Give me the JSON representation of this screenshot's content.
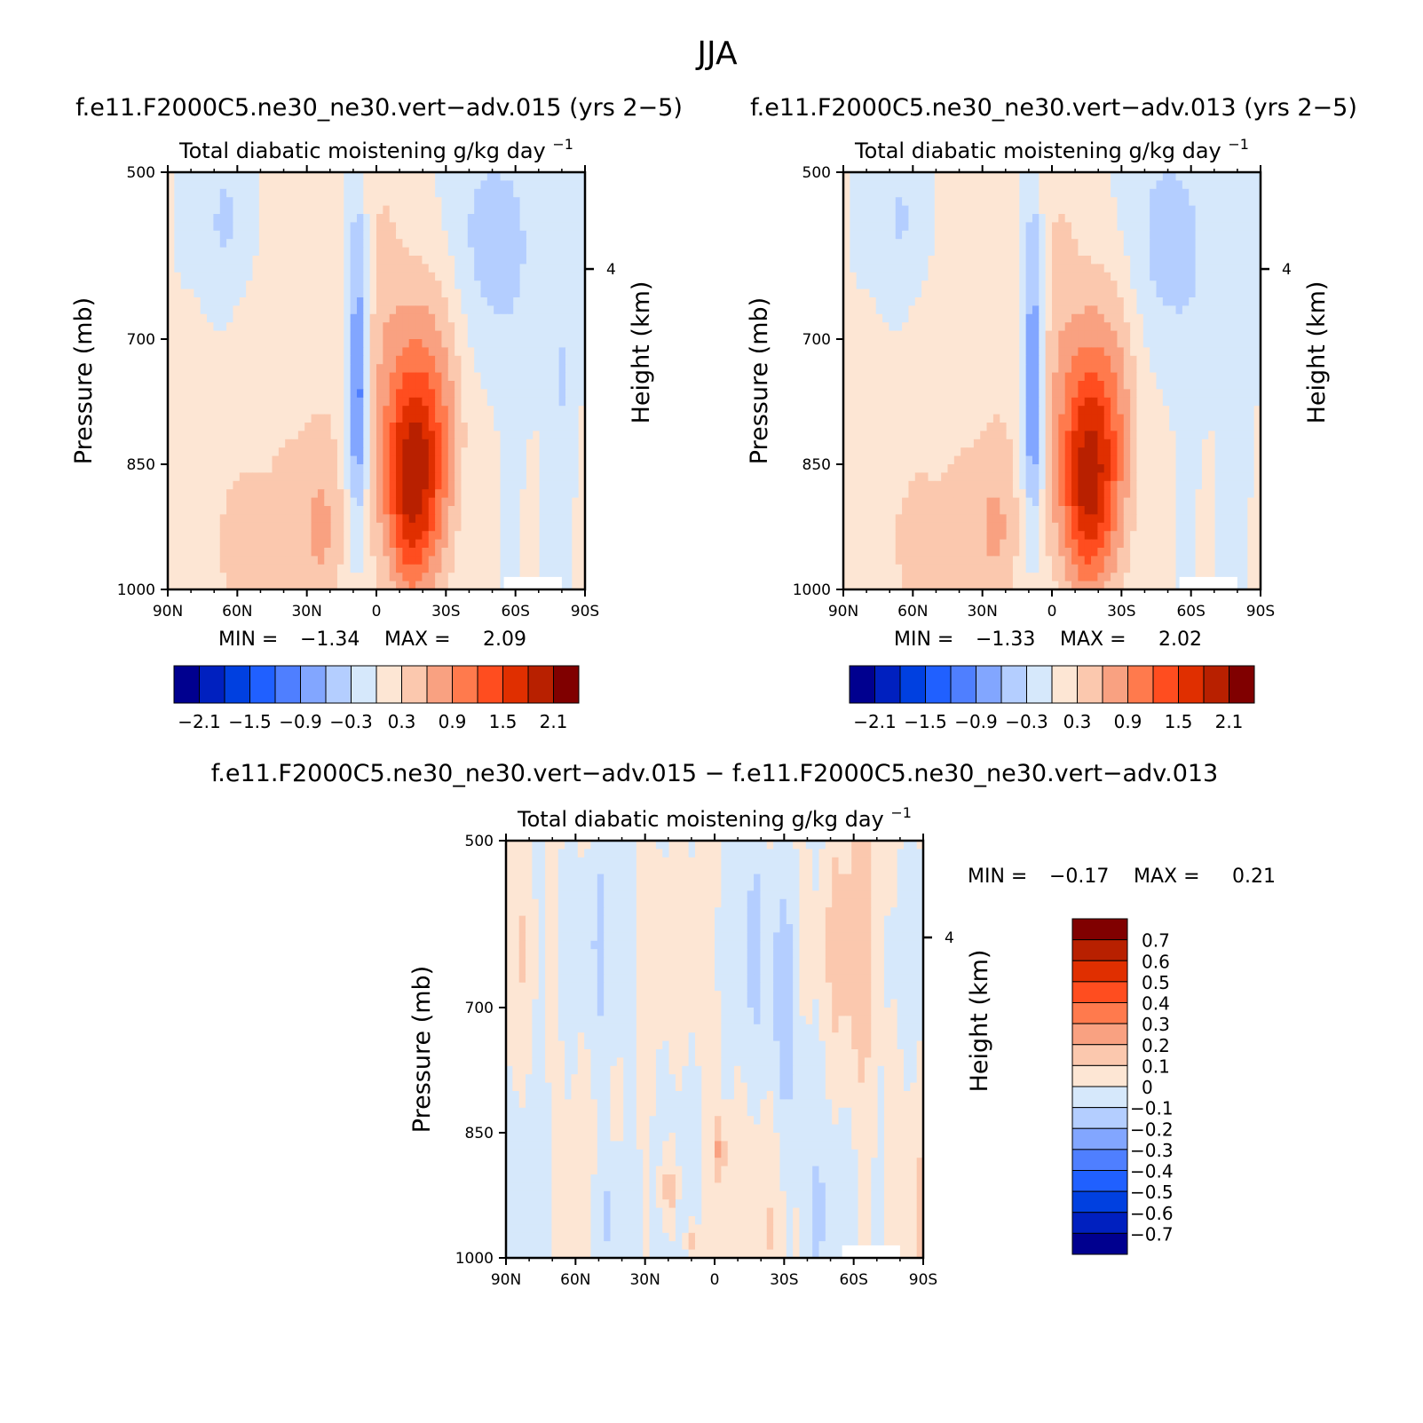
{
  "page": {
    "title": "JJA"
  },
  "colors": {
    "label_bg": "#ffffff",
    "axis": "#000000",
    "palette": [
      "#00008f",
      "#0020bf",
      "#0040e0",
      "#2060ff",
      "#4f7fff",
      "#82a6ff",
      "#b4ceff",
      "#d6e8fb",
      "#fde6d4",
      "#fbc8ae",
      "#f9a181",
      "#ff7a4d",
      "#ff4d1f",
      "#e02f00",
      "#b82000",
      "#800000"
    ]
  },
  "chart_data": [
    {
      "type": "heatmap",
      "id": "p1",
      "run_title": "f.e11.F2000C5.ne30_ne30.vert−adv.015 (yrs 2−5)",
      "title": "Total diabatic moistening",
      "units": "g/kg day",
      "units_exp": "−1",
      "ylabel": "Pressure (mb)",
      "ylabel_right": "Height (km)",
      "xlabel": "",
      "x_ticks": [
        "90N",
        "60N",
        "30N",
        "0",
        "30S",
        "60S",
        "90S"
      ],
      "y_ticks": [
        "500",
        "700",
        "850",
        "1000"
      ],
      "y_ticks_right": [
        "4"
      ],
      "xlim": [
        90,
        -90
      ],
      "ylim": [
        1000,
        500
      ],
      "stats": {
        "min_label": "MIN =",
        "min": "−1.34",
        "max_label": "MAX =",
        "max": "2.09"
      },
      "colorbar": {
        "orientation": "horizontal",
        "labels": [
          "−2.1",
          "−1.5",
          "−0.9",
          "−0.3",
          "0.3",
          "0.9",
          "1.5",
          "2.1"
        ]
      },
      "peaks": {
        "neg": -1.34,
        "pos": 2.09
      }
    },
    {
      "type": "heatmap",
      "id": "p2",
      "run_title": "f.e11.F2000C5.ne30_ne30.vert−adv.013 (yrs 2−5)",
      "title": "Total diabatic moistening",
      "units": "g/kg day",
      "units_exp": "−1",
      "ylabel": "Pressure (mb)",
      "ylabel_right": "Height (km)",
      "xlabel": "",
      "x_ticks": [
        "90N",
        "60N",
        "30N",
        "0",
        "30S",
        "60S",
        "90S"
      ],
      "y_ticks": [
        "500",
        "700",
        "850",
        "1000"
      ],
      "y_ticks_right": [
        "4"
      ],
      "xlim": [
        90,
        -90
      ],
      "ylim": [
        1000,
        500
      ],
      "stats": {
        "min_label": "MIN =",
        "min": "−1.33",
        "max_label": "MAX =",
        "max": "2.02"
      },
      "colorbar": {
        "orientation": "horizontal",
        "labels": [
          "−2.1",
          "−1.5",
          "−0.9",
          "−0.3",
          "0.3",
          "0.9",
          "1.5",
          "2.1"
        ]
      },
      "peaks": {
        "neg": -1.33,
        "pos": 2.02
      }
    },
    {
      "type": "heatmap",
      "id": "p3",
      "run_title": "f.e11.F2000C5.ne30_ne30.vert−adv.015 − f.e11.F2000C5.ne30_ne30.vert−adv.013",
      "title": "Total diabatic moistening",
      "units": "g/kg day",
      "units_exp": "−1",
      "ylabel": "Pressure (mb)",
      "ylabel_right": "Height (km)",
      "xlabel": "",
      "x_ticks": [
        "90N",
        "60N",
        "30N",
        "0",
        "30S",
        "60S",
        "90S"
      ],
      "y_ticks": [
        "500",
        "700",
        "850",
        "1000"
      ],
      "y_ticks_right": [
        "4"
      ],
      "xlim": [
        90,
        -90
      ],
      "ylim": [
        1000,
        500
      ],
      "stats": {
        "min_label": "MIN =",
        "min": "−0.17",
        "max_label": "MAX =",
        "max": "0.21"
      },
      "colorbar": {
        "orientation": "vertical",
        "labels": [
          "0.7",
          "0.6",
          "0.5",
          "0.4",
          "0.3",
          "0.2",
          "0.1",
          "0",
          "−0.1",
          "−0.2",
          "−0.3",
          "−0.4",
          "−0.5",
          "−0.6",
          "−0.7"
        ]
      },
      "peaks": {
        "neg": -0.17,
        "pos": 0.21
      }
    }
  ]
}
